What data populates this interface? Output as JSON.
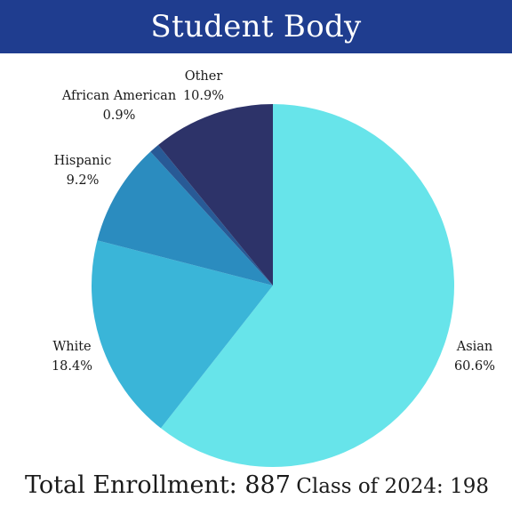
{
  "header": {
    "title": "Student Body",
    "bg_color": "#1f3d8f"
  },
  "chart_data": {
    "type": "pie",
    "title": "Student Body",
    "slices": [
      {
        "label": "Asian",
        "value": 60.6,
        "value_text": "60.6%",
        "color": "#67e4ea"
      },
      {
        "label": "White",
        "value": 18.4,
        "value_text": "18.4%",
        "color": "#3ab5d8"
      },
      {
        "label": "Hispanic",
        "value": 9.2,
        "value_text": "9.2%",
        "color": "#2b8cbf"
      },
      {
        "label": "African American",
        "value": 0.9,
        "value_text": "0.9%",
        "color": "#285a96"
      },
      {
        "label": "Other",
        "value": 10.9,
        "value_text": "10.9%",
        "color": "#2d3369"
      }
    ]
  },
  "footer": {
    "total_enrollment": "Total Enrollment: 887",
    "class_of": "Class of 2024: 198"
  }
}
